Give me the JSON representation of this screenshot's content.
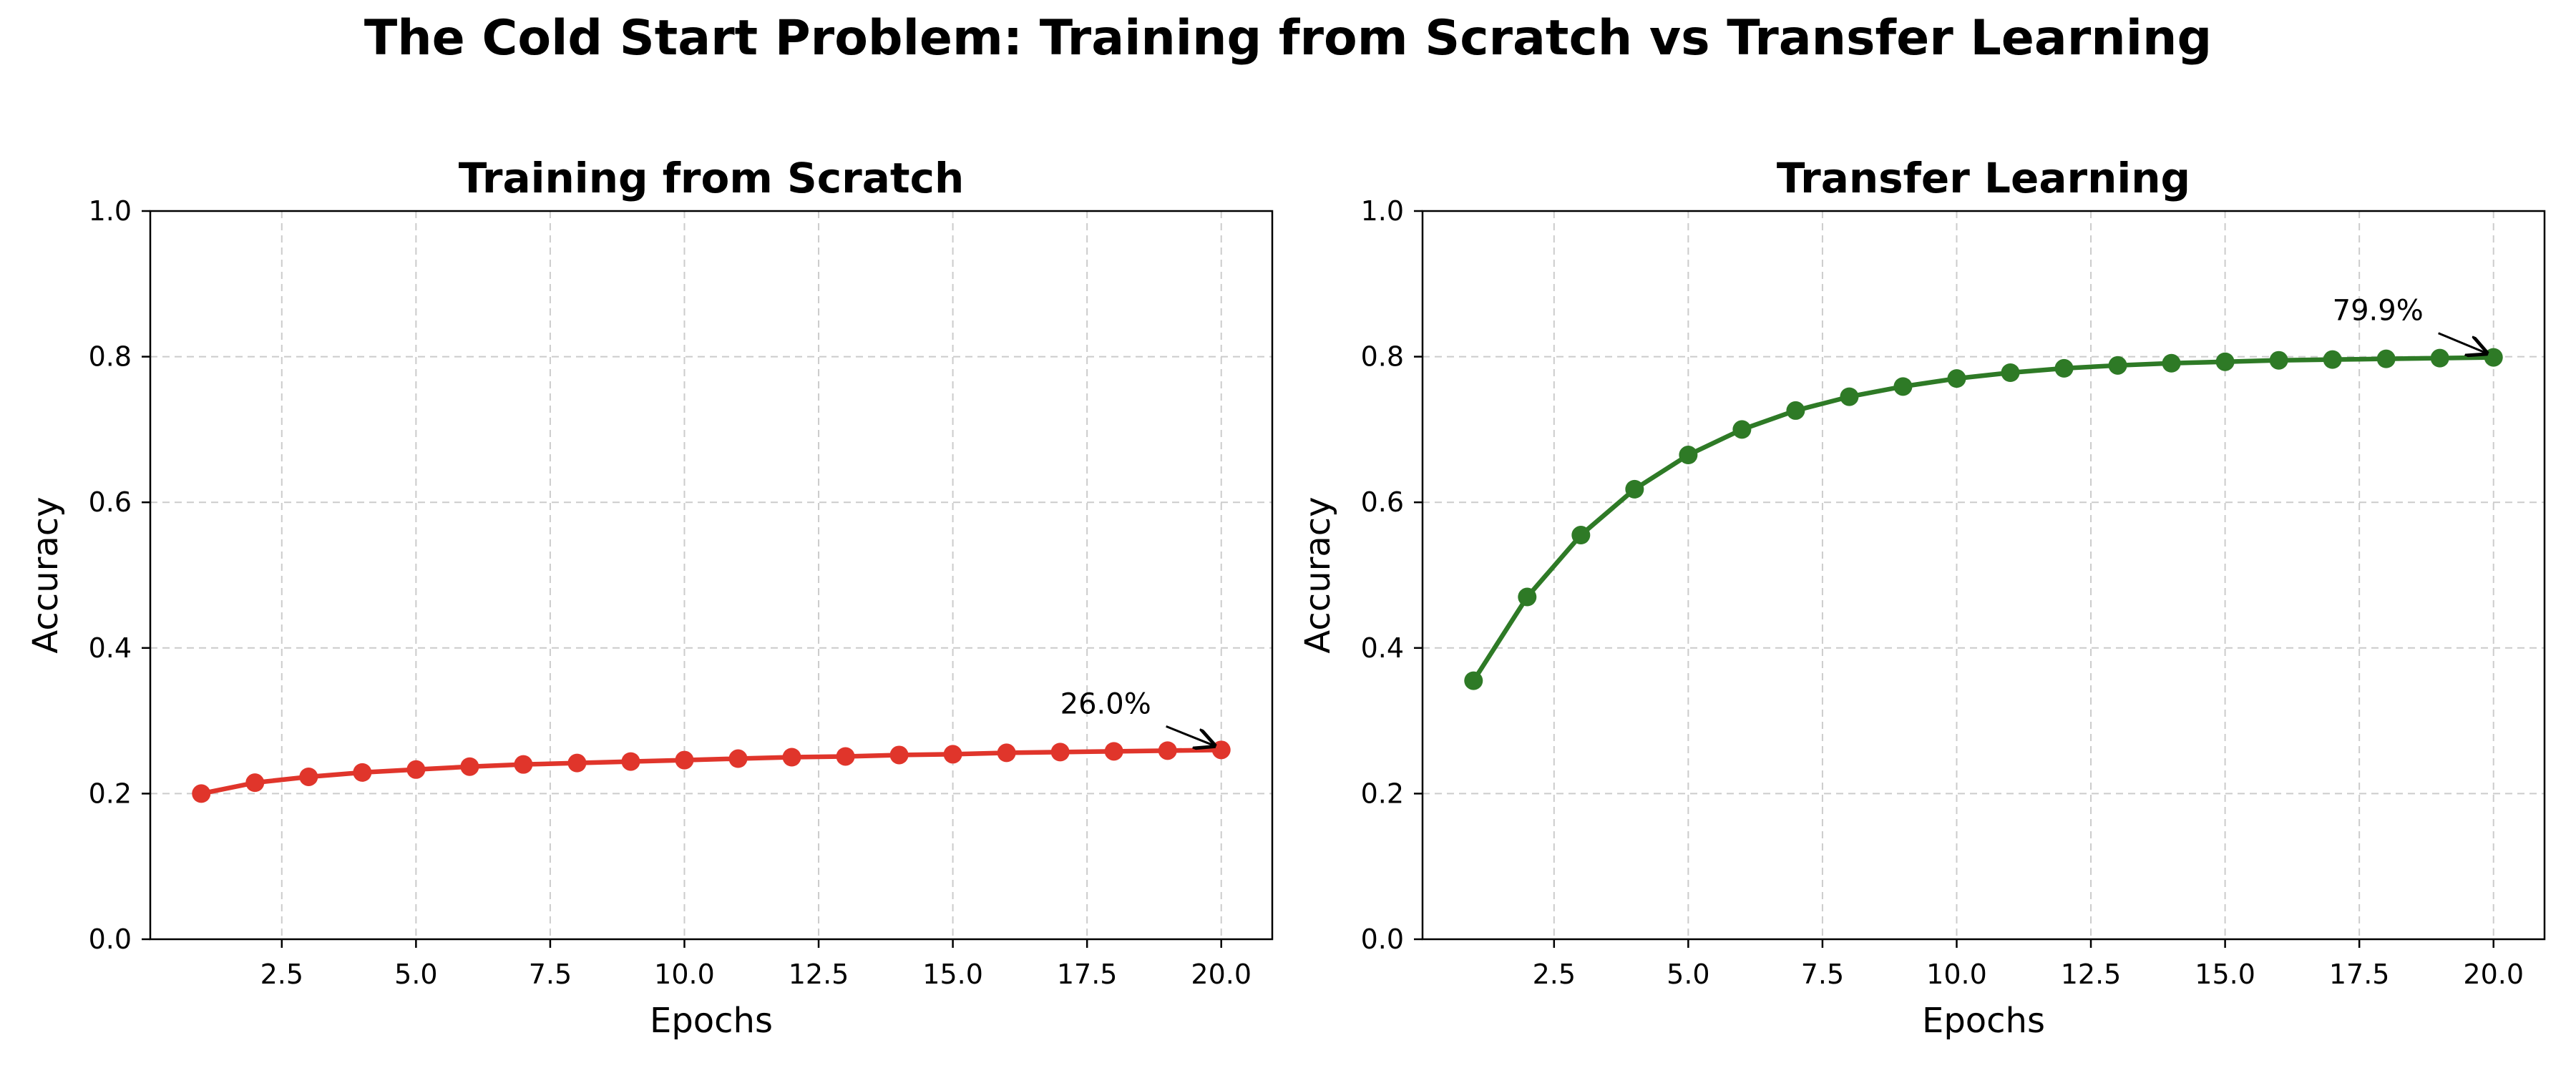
{
  "title": "The Cold Start Problem: Training from Scratch vs Transfer Learning",
  "chart_data": [
    {
      "type": "line",
      "title": "Training from Scratch",
      "xlabel": "Epochs",
      "ylabel": "Accuracy",
      "color": "#e0352b",
      "x": [
        1,
        2,
        3,
        4,
        5,
        6,
        7,
        8,
        9,
        10,
        11,
        12,
        13,
        14,
        15,
        16,
        17,
        18,
        19,
        20
      ],
      "values": [
        0.2,
        0.215,
        0.223,
        0.229,
        0.233,
        0.237,
        0.24,
        0.242,
        0.244,
        0.246,
        0.248,
        0.25,
        0.251,
        0.253,
        0.254,
        0.256,
        0.257,
        0.258,
        0.259,
        0.26
      ],
      "xlim": [
        0.05,
        20.95
      ],
      "ylim": [
        0,
        1
      ],
      "xticks": [
        2.5,
        5.0,
        7.5,
        10.0,
        12.5,
        15.0,
        17.5,
        20.0
      ],
      "xtick_labels": [
        "2.5",
        "5.0",
        "7.5",
        "10.0",
        "12.5",
        "15.0",
        "17.5",
        "20.0"
      ],
      "yticks": [
        0,
        0.2,
        0.4,
        0.6,
        0.8,
        1.0
      ],
      "ytick_labels": [
        "0.0",
        "0.2",
        "0.4",
        "0.6",
        "0.8",
        "1.0"
      ],
      "grid": true,
      "annotation": {
        "text": "26.0%",
        "x": 20,
        "y": 0.26,
        "text_x": 17,
        "text_y": 0.31
      }
    },
    {
      "type": "line",
      "title": "Transfer Learning",
      "xlabel": "Epochs",
      "ylabel": "Accuracy",
      "color": "#2e7a26",
      "x": [
        1,
        2,
        3,
        4,
        5,
        6,
        7,
        8,
        9,
        10,
        11,
        12,
        13,
        14,
        15,
        16,
        17,
        18,
        19,
        20
      ],
      "values": [
        0.355,
        0.47,
        0.555,
        0.618,
        0.665,
        0.7,
        0.726,
        0.745,
        0.759,
        0.77,
        0.778,
        0.784,
        0.788,
        0.791,
        0.793,
        0.795,
        0.796,
        0.797,
        0.798,
        0.799
      ],
      "xlim": [
        0.05,
        20.95
      ],
      "ylim": [
        0,
        1
      ],
      "xticks": [
        2.5,
        5.0,
        7.5,
        10.0,
        12.5,
        15.0,
        17.5,
        20.0
      ],
      "xtick_labels": [
        "2.5",
        "5.0",
        "7.5",
        "10.0",
        "12.5",
        "15.0",
        "17.5",
        "20.0"
      ],
      "yticks": [
        0,
        0.2,
        0.4,
        0.6,
        0.8,
        1.0
      ],
      "ytick_labels": [
        "0.0",
        "0.2",
        "0.4",
        "0.6",
        "0.8",
        "1.0"
      ],
      "grid": true,
      "annotation": {
        "text": "79.9%",
        "x": 20,
        "y": 0.799,
        "text_x": 17,
        "text_y": 0.85
      }
    }
  ]
}
